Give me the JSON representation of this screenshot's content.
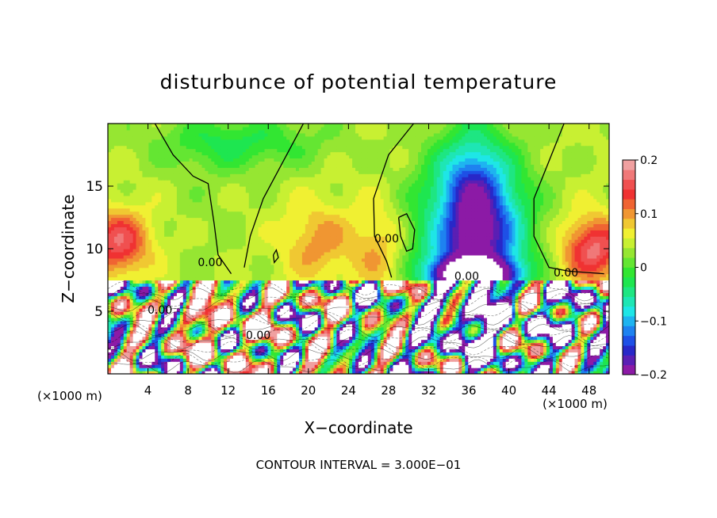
{
  "chart_data": {
    "type": "heatmap",
    "title": "disturbunce of potential temperature",
    "xlabel": "X−coordinate",
    "ylabel": "Z−coordinate",
    "x_unit_label": "(×1000 m)",
    "x_unit_label_bottom": "(×1000 m)",
    "xlim": [
      0,
      50
    ],
    "ylim": [
      0,
      20
    ],
    "x_ticks": [
      4,
      8,
      12,
      16,
      20,
      24,
      28,
      32,
      36,
      40,
      44,
      48
    ],
    "y_ticks": [
      5,
      10,
      15
    ],
    "colorbar": {
      "range": [
        -0.2,
        0.2
      ],
      "ticks": [
        {
          "value": 0.2,
          "label": "0.2"
        },
        {
          "value": 0.1,
          "label": "0.1"
        },
        {
          "value": 0.0,
          "label": "0"
        },
        {
          "value": -0.1,
          "label": "−0.1"
        },
        {
          "value": -0.2,
          "label": "−0.2"
        }
      ],
      "colors": [
        "#8c1aa6",
        "#5a1fb4",
        "#2828c8",
        "#1e50e6",
        "#1e82f0",
        "#1eb4f0",
        "#1ee6e6",
        "#1ee6b4",
        "#1ee682",
        "#1ee650",
        "#32e632",
        "#64e632",
        "#96e632",
        "#c8f032",
        "#f0f032",
        "#f0c832",
        "#f09632",
        "#f06432",
        "#f03232",
        "#f05050",
        "#f07878",
        "#f0a0a0"
      ]
    },
    "contour_labels": [
      {
        "x": 10.2,
        "y": 8.6,
        "text": "0.00"
      },
      {
        "x": 27.8,
        "y": 10.5,
        "text": "0.00"
      },
      {
        "x": 35.8,
        "y": 7.5,
        "text": "0.00"
      },
      {
        "x": 45.7,
        "y": 7.8,
        "text": "0.00"
      },
      {
        "x": 15.0,
        "y": 2.8,
        "text": "0.00"
      },
      {
        "x": 5.2,
        "y": 4.8,
        "text": "0.00"
      }
    ],
    "contour_interval": "CONTOUR INTERVAL = 3.000E−01"
  }
}
